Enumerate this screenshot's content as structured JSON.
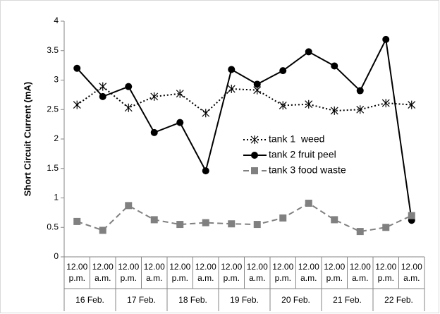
{
  "chart_data": {
    "type": "line",
    "y_label": "Short Circuit Current (mA)",
    "categories": [
      "12.00 p.m.",
      "12.00 a.m.",
      "12.00 p.m.",
      "12.00 a.m.",
      "12.00 p.m.",
      "12.00 a.m.",
      "12.00 p.m.",
      "12.00 a.m.",
      "12.00 p.m.",
      "12.00 a.m.",
      "12.00 p.m.",
      "12.00 a.m.",
      "12.00 p.m.",
      "12.00 a.m."
    ],
    "category_groups": [
      "16 Feb.",
      "17 Feb.",
      "18 Feb.",
      "19 Feb.",
      "20 Feb.",
      "21 Feb.",
      "22 Feb."
    ],
    "series": [
      {
        "name": "tank 1  weed",
        "color": "#000000",
        "style": "dotted",
        "marker": "star",
        "values": [
          2.58,
          2.89,
          2.53,
          2.72,
          2.77,
          2.44,
          2.85,
          2.83,
          2.57,
          2.59,
          2.48,
          2.5,
          2.61,
          2.58
        ]
      },
      {
        "name": "tank 2 fruit peel",
        "color": "#000000",
        "style": "solid",
        "marker": "circle",
        "values": [
          3.2,
          2.72,
          2.89,
          2.11,
          2.28,
          1.46,
          3.18,
          2.93,
          3.16,
          3.48,
          3.24,
          2.82,
          3.69,
          0.62
        ]
      },
      {
        "name": "tank 3 food waste",
        "color": "#808080",
        "style": "dashed",
        "marker": "square",
        "values": [
          0.6,
          0.45,
          0.87,
          0.63,
          0.55,
          0.58,
          0.56,
          0.55,
          0.66,
          0.91,
          0.63,
          0.43,
          0.5,
          0.7
        ]
      }
    ],
    "ylim": [
      0,
      4
    ],
    "yticks": [
      0,
      0.5,
      1,
      1.5,
      2,
      2.5,
      3,
      3.5,
      4
    ],
    "grid": false
  }
}
